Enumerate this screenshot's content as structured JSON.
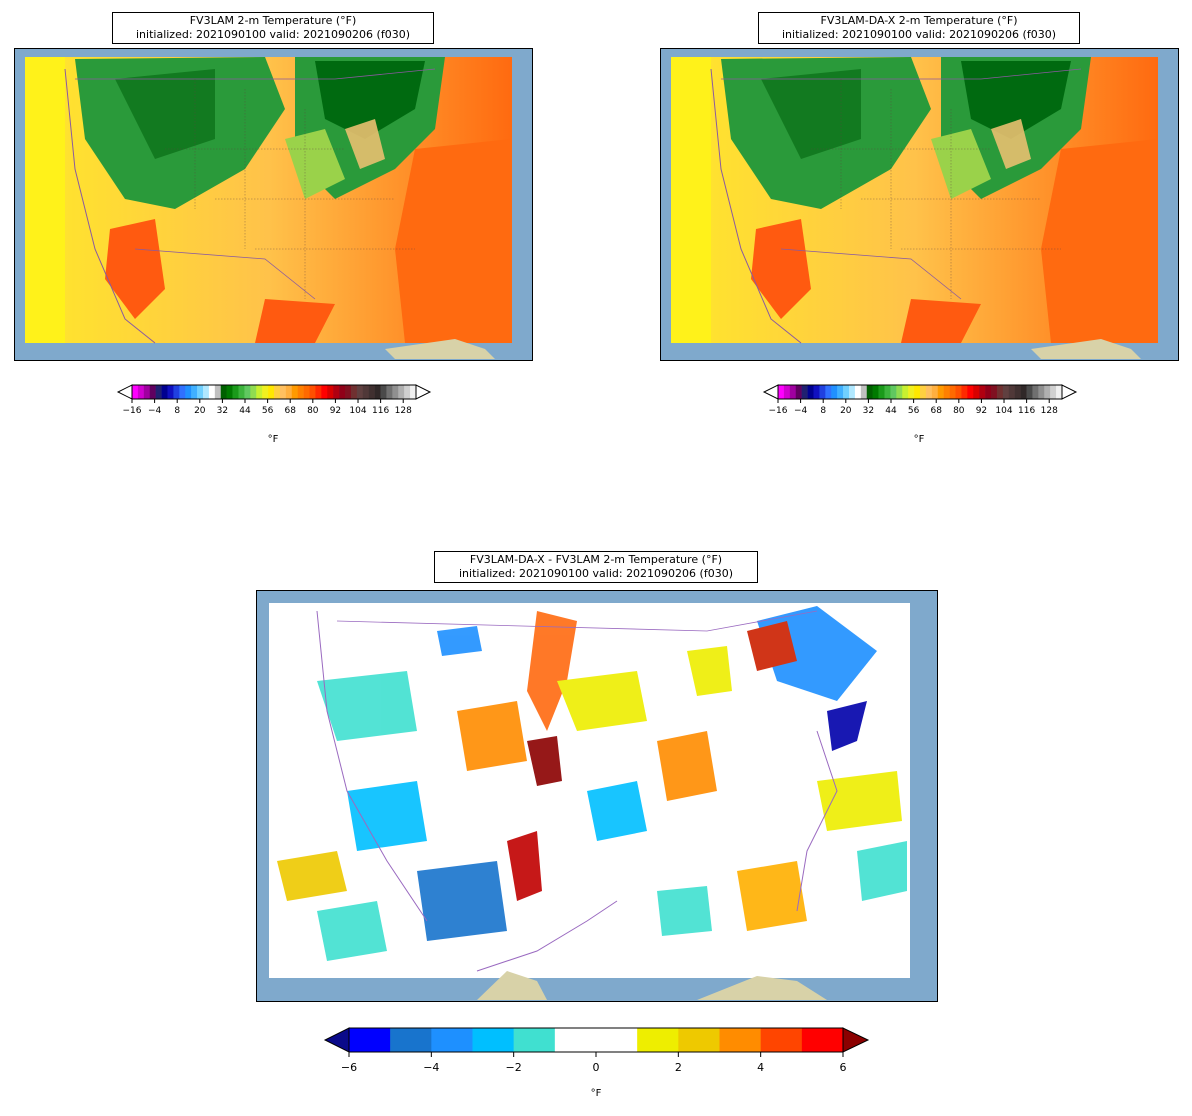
{
  "panels": [
    {
      "id": "fv3lam",
      "title_line1": "FV3LAM 2-m Temperature (°F)",
      "title_line2": "initialized: 2021090100 valid: 2021090206 (f030)"
    },
    {
      "id": "fv3lam-da-x",
      "title_line1": "FV3LAM-DA-X 2-m Temperature (°F)",
      "title_line2": "initialized: 2021090100 valid: 2021090206 (f030)"
    },
    {
      "id": "difference",
      "title_line1": "FV3LAM-DA-X - FV3LAM 2-m Temperature (°F)",
      "title_line2": "initialized: 2021090100 valid: 2021090206 (f030)"
    }
  ],
  "temp_colorbar": {
    "unit": "°F",
    "ticks": [
      "−16",
      "−4",
      "8",
      "20",
      "32",
      "44",
      "56",
      "68",
      "80",
      "92",
      "104",
      "116",
      "128"
    ],
    "colors": [
      "#ff00ff",
      "#d000d0",
      "#a000a0",
      "#600060",
      "#202070",
      "#000090",
      "#1010c0",
      "#2040e0",
      "#3070ff",
      "#2090ff",
      "#40b0ff",
      "#70d0ff",
      "#b0e8ff",
      "#ffffff",
      "#c0c0c0",
      "#006000",
      "#007a00",
      "#1a9a1a",
      "#3cb43c",
      "#60c860",
      "#90dc50",
      "#c8f030",
      "#f0f020",
      "#ffe800",
      "#ffd040",
      "#ffc060",
      "#ffb040",
      "#ff9a00",
      "#ff8000",
      "#ff6a00",
      "#ff5000",
      "#ff2a00",
      "#ff0000",
      "#d80000",
      "#b00010",
      "#900018",
      "#801020",
      "#703030",
      "#604040",
      "#503838",
      "#403030",
      "#302828",
      "#4a4a4a",
      "#707070",
      "#909090",
      "#b0b0b0",
      "#d0d0d0",
      "#f0f0f0"
    ]
  },
  "diff_colorbar": {
    "unit": "°F",
    "ticks": [
      "−6",
      "−4",
      "−2",
      "0",
      "2",
      "4",
      "6"
    ],
    "under_color": "#0a0a8a",
    "over_color": "#8b0000",
    "colors": [
      "#0000ff",
      "#1874cd",
      "#1e90ff",
      "#00bfff",
      "#40e0d0",
      "#ffffff",
      "#ffffff",
      "#eeee00",
      "#eec900",
      "#ff8c00",
      "#ff4500",
      "#ff0000"
    ]
  }
}
